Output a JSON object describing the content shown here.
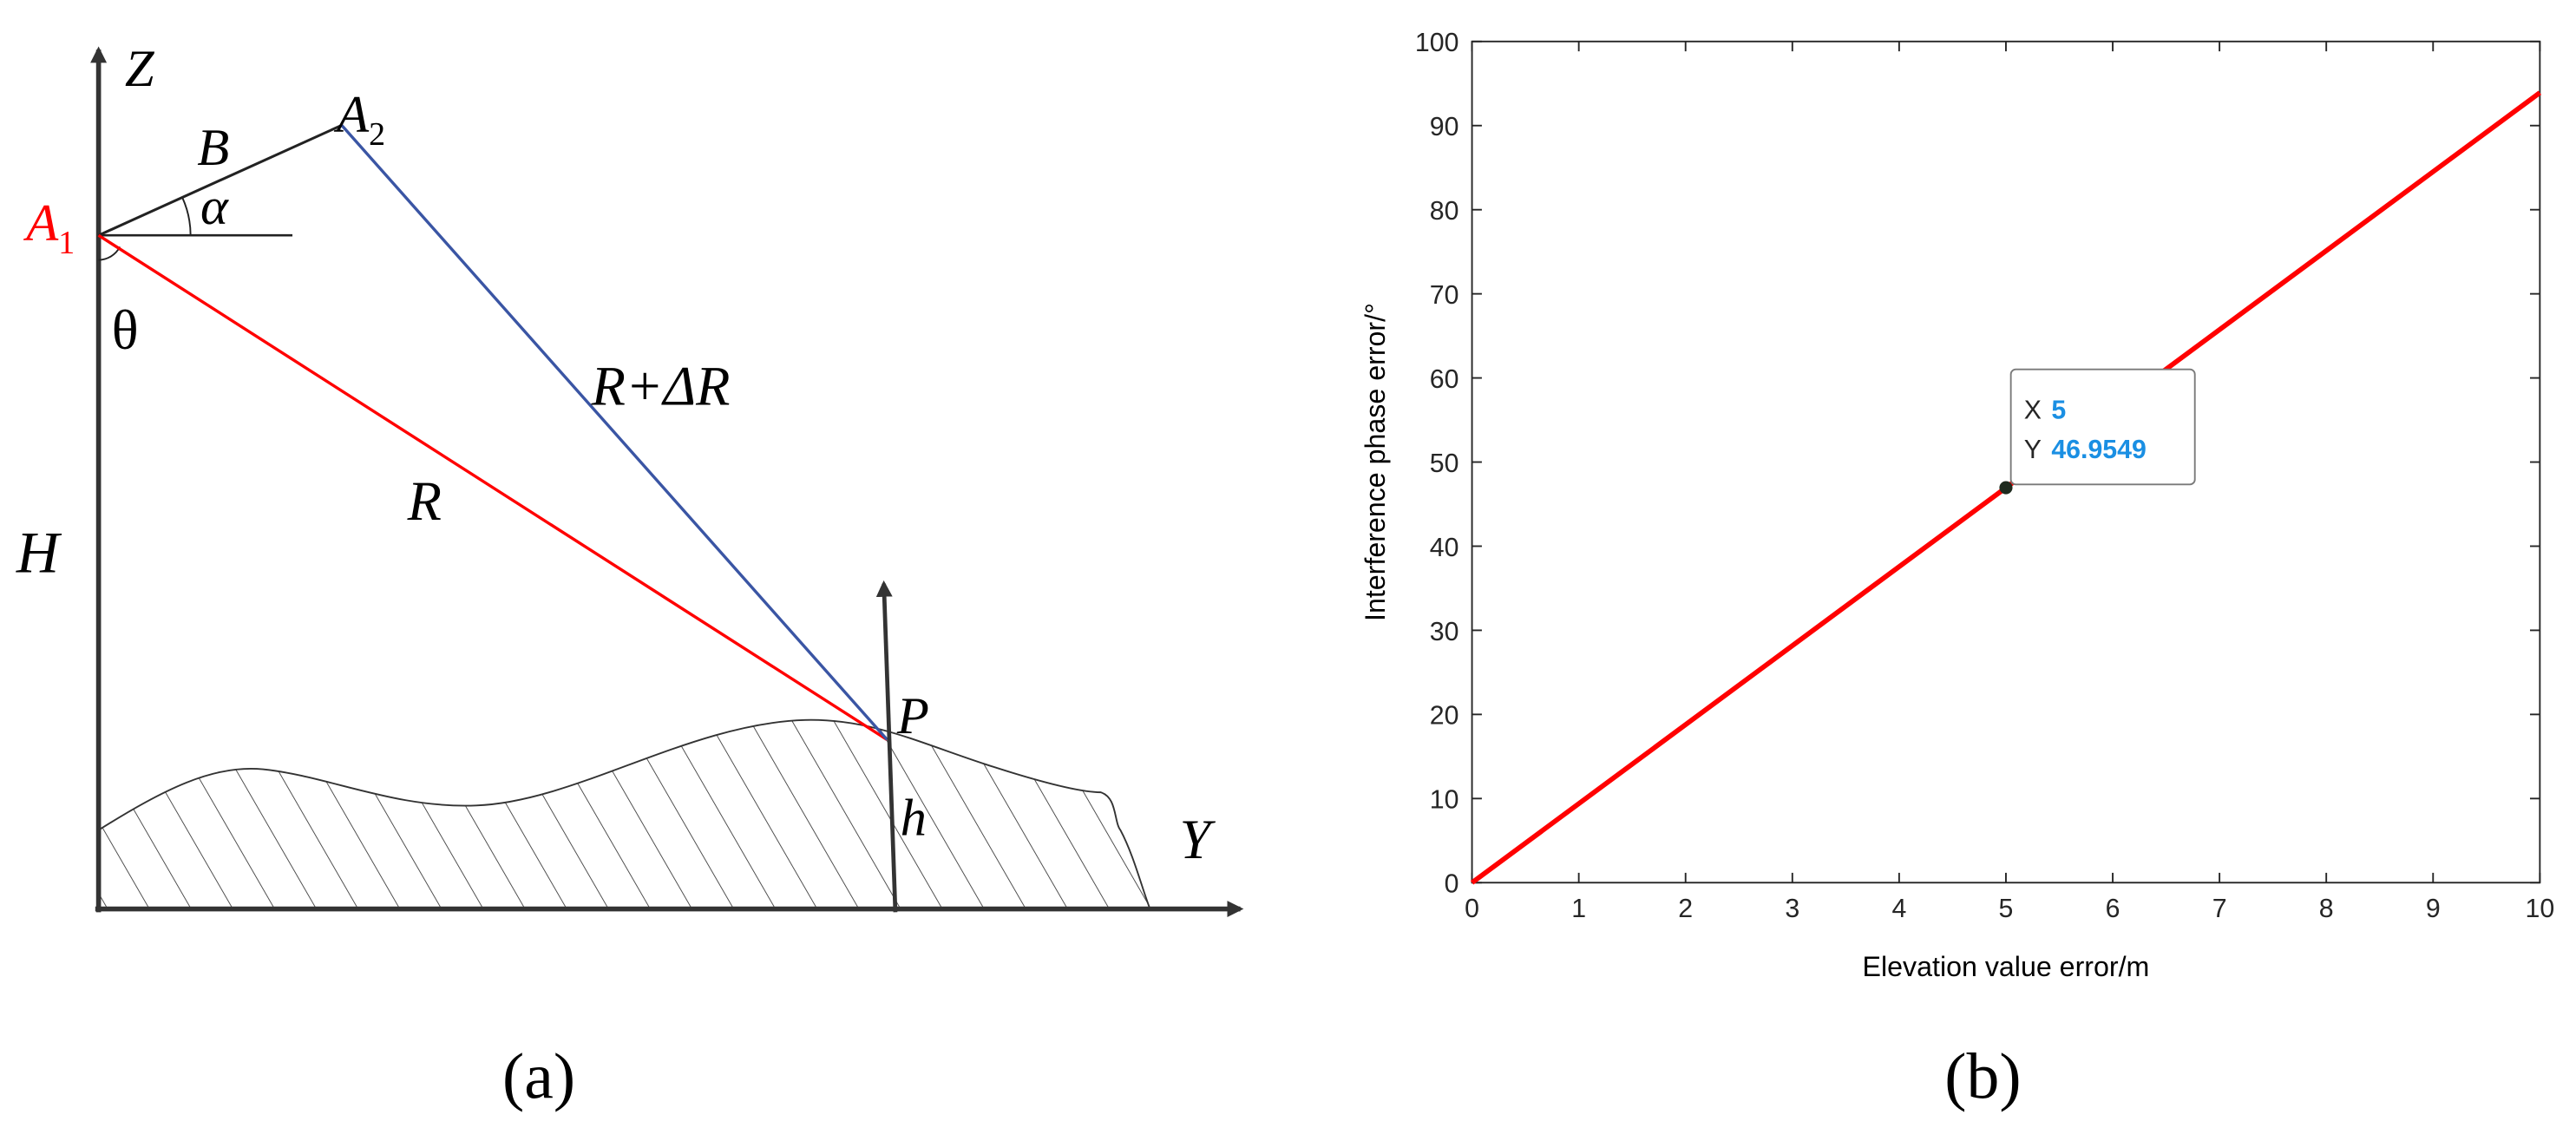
{
  "diagram": {
    "z_axis": "Z",
    "y_axis": "Y",
    "a1": {
      "main": "A",
      "sub": "1"
    },
    "a2": {
      "main": "A",
      "sub": "2"
    },
    "baseline": "B",
    "angle_alpha": "α",
    "angle_theta": "θ",
    "height": "H",
    "range": "R",
    "range2": "R+ΔR",
    "point": "P",
    "elevation": "h",
    "caption": "(a)"
  },
  "chart_data": {
    "type": "line",
    "xlabel": "Elevation value error/m",
    "ylabel": "Interference phase error/°",
    "x": [
      0,
      5,
      10
    ],
    "series": [
      {
        "color": "#ff0000",
        "values": [
          0,
          46.9549,
          93.9098
        ]
      }
    ],
    "xlim": [
      0,
      10
    ],
    "ylim": [
      0,
      100
    ],
    "xticks": [
      0,
      1,
      2,
      3,
      4,
      5,
      6,
      7,
      8,
      9,
      10
    ],
    "yticks": [
      0,
      10,
      20,
      30,
      40,
      50,
      60,
      70,
      80,
      90,
      100
    ],
    "datatip": {
      "x_label": "X",
      "x": 5,
      "y_label": "Y",
      "y": 46.9549
    },
    "caption": "(b)"
  }
}
